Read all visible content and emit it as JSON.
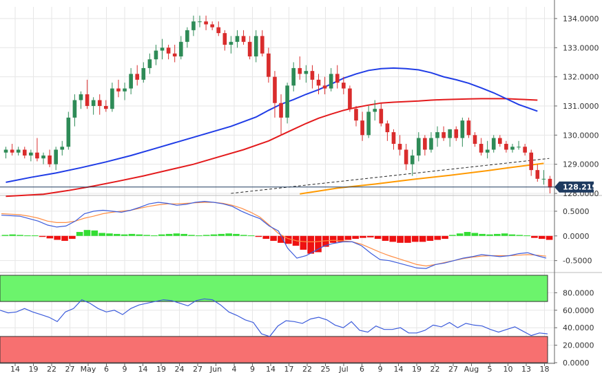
{
  "chart_data": [
    {
      "type": "candlestick",
      "panel": "price",
      "ylim": [
        128.0,
        134.4
      ],
      "y_ticks": [
        "134.0000",
        "133.0000",
        "132.0000",
        "131.0000",
        "130.0000",
        "129.0000",
        "128.0000"
      ],
      "y_tick_values": [
        134,
        133,
        132,
        131,
        130,
        129,
        128
      ],
      "last_price_label": "128.2190",
      "last_price": 128.219,
      "x_tick_labels": [
        "14",
        "19",
        "22",
        "27",
        "May",
        "6",
        "9",
        "14",
        "19",
        "24",
        "27",
        "Jun",
        "4",
        "9",
        "14",
        "17",
        "22",
        "25",
        "Jul",
        "6",
        "9",
        "14",
        "19",
        "22",
        "27",
        "Aug",
        "5",
        "10",
        "13",
        "18"
      ],
      "candles": [
        [
          129.4,
          129.6,
          129.2,
          129.5
        ],
        [
          129.5,
          129.7,
          129.3,
          129.4
        ],
        [
          129.4,
          129.6,
          129.3,
          129.5
        ],
        [
          129.5,
          129.6,
          129.2,
          129.3
        ],
        [
          129.3,
          129.5,
          129.1,
          129.4
        ],
        [
          129.4,
          129.9,
          129.1,
          129.2
        ],
        [
          129.2,
          129.4,
          129.0,
          129.3
        ],
        [
          129.3,
          129.5,
          128.9,
          129.0
        ],
        [
          129.0,
          129.6,
          128.8,
          129.5
        ],
        [
          129.5,
          129.8,
          129.3,
          129.6
        ],
        [
          129.6,
          130.8,
          129.5,
          130.6
        ],
        [
          130.6,
          131.4,
          130.3,
          131.2
        ],
        [
          131.2,
          131.5,
          130.9,
          131.4
        ],
        [
          131.4,
          131.9,
          130.9,
          131.0
        ],
        [
          131.0,
          131.3,
          130.7,
          131.2
        ],
        [
          131.2,
          131.4,
          130.7,
          131.0
        ],
        [
          131.0,
          131.2,
          130.8,
          130.9
        ],
        [
          130.9,
          131.8,
          130.8,
          131.6
        ],
        [
          131.6,
          131.9,
          131.3,
          131.5
        ],
        [
          131.5,
          131.8,
          131.2,
          131.6
        ],
        [
          131.6,
          132.3,
          131.4,
          132.1
        ],
        [
          132.1,
          132.4,
          131.7,
          131.9
        ],
        [
          131.9,
          132.5,
          131.8,
          132.3
        ],
        [
          132.3,
          132.8,
          132.1,
          132.6
        ],
        [
          132.6,
          133.1,
          132.4,
          132.9
        ],
        [
          132.9,
          133.3,
          132.6,
          133.0
        ],
        [
          133.0,
          133.1,
          132.6,
          132.8
        ],
        [
          132.8,
          133.1,
          132.5,
          132.7
        ],
        [
          132.7,
          133.4,
          132.6,
          133.2
        ],
        [
          133.2,
          133.7,
          133.0,
          133.6
        ],
        [
          133.6,
          134.1,
          133.4,
          133.9
        ],
        [
          133.9,
          134.1,
          133.7,
          133.9
        ],
        [
          133.9,
          134.1,
          133.6,
          133.8
        ],
        [
          133.8,
          133.9,
          133.6,
          133.7
        ],
        [
          133.7,
          133.9,
          133.4,
          133.5
        ],
        [
          133.5,
          133.6,
          132.9,
          133.1
        ],
        [
          133.1,
          133.4,
          132.8,
          133.2
        ],
        [
          133.2,
          133.6,
          133.0,
          133.4
        ],
        [
          133.4,
          133.6,
          133.1,
          133.2
        ],
        [
          133.2,
          133.4,
          132.6,
          132.7
        ],
        [
          132.7,
          133.6,
          132.5,
          133.4
        ],
        [
          133.4,
          133.6,
          132.7,
          132.8
        ],
        [
          132.8,
          133.0,
          131.8,
          132.0
        ],
        [
          132.0,
          132.2,
          130.6,
          131.1
        ],
        [
          131.1,
          131.4,
          130.0,
          130.6
        ],
        [
          130.6,
          131.8,
          130.4,
          131.7
        ],
        [
          131.7,
          132.5,
          131.5,
          132.3
        ],
        [
          132.3,
          132.7,
          131.9,
          132.1
        ],
        [
          132.1,
          132.4,
          131.8,
          132.2
        ],
        [
          132.2,
          132.4,
          131.6,
          131.9
        ],
        [
          131.9,
          132.1,
          131.4,
          131.7
        ],
        [
          131.7,
          132.0,
          131.4,
          131.6
        ],
        [
          131.6,
          132.3,
          131.5,
          132.1
        ],
        [
          132.1,
          132.4,
          131.6,
          131.8
        ],
        [
          131.8,
          132.0,
          131.4,
          131.6
        ],
        [
          131.6,
          131.7,
          130.8,
          130.9
        ],
        [
          130.9,
          131.0,
          130.3,
          130.5
        ],
        [
          130.5,
          130.8,
          129.8,
          130.0
        ],
        [
          130.0,
          131.0,
          129.9,
          130.8
        ],
        [
          130.8,
          131.2,
          130.5,
          130.9
        ],
        [
          130.9,
          131.1,
          130.3,
          130.4
        ],
        [
          130.4,
          130.5,
          129.8,
          130.1
        ],
        [
          130.1,
          130.2,
          129.5,
          129.7
        ],
        [
          129.7,
          130.0,
          129.3,
          129.5
        ],
        [
          129.5,
          129.7,
          128.8,
          129.0
        ],
        [
          129.0,
          129.5,
          128.6,
          129.3
        ],
        [
          129.3,
          130.1,
          129.1,
          129.9
        ],
        [
          129.9,
          130.0,
          129.3,
          129.5
        ],
        [
          129.5,
          130.1,
          129.4,
          129.9
        ],
        [
          129.9,
          130.3,
          129.6,
          130.1
        ],
        [
          130.1,
          130.3,
          129.8,
          129.9
        ],
        [
          129.9,
          130.2,
          129.6,
          130.2
        ],
        [
          130.2,
          130.3,
          129.8,
          129.9
        ],
        [
          129.9,
          130.6,
          129.6,
          130.5
        ],
        [
          130.5,
          130.6,
          129.9,
          130.0
        ],
        [
          130.0,
          130.1,
          129.6,
          129.7
        ],
        [
          129.7,
          129.9,
          129.3,
          129.4
        ],
        [
          129.4,
          129.8,
          129.2,
          129.5
        ],
        [
          129.5,
          130.0,
          129.4,
          129.9
        ],
        [
          129.9,
          130.0,
          129.6,
          129.7
        ],
        [
          129.7,
          129.8,
          129.4,
          129.5
        ],
        [
          129.5,
          129.7,
          129.4,
          129.6
        ],
        [
          129.6,
          129.8,
          129.5,
          129.6
        ],
        [
          129.6,
          129.7,
          129.3,
          129.4
        ],
        [
          129.4,
          129.5,
          128.6,
          128.8
        ],
        [
          128.8,
          129.0,
          128.4,
          128.5
        ],
        [
          128.5,
          128.8,
          128.3,
          128.5
        ],
        [
          128.5,
          128.6,
          128.0,
          128.2
        ]
      ],
      "sma_blue": [
        [
          0,
          128.38
        ],
        [
          4,
          128.55
        ],
        [
          8,
          128.7
        ],
        [
          12,
          128.88
        ],
        [
          16,
          129.08
        ],
        [
          20,
          129.3
        ],
        [
          24,
          129.55
        ],
        [
          28,
          129.8
        ],
        [
          32,
          130.05
        ],
        [
          36,
          130.3
        ],
        [
          40,
          130.62
        ],
        [
          42,
          130.85
        ],
        [
          44,
          131.06
        ],
        [
          46,
          131.22
        ],
        [
          48,
          131.4
        ],
        [
          50,
          131.56
        ],
        [
          52,
          131.75
        ],
        [
          54,
          131.95
        ],
        [
          56,
          132.1
        ],
        [
          58,
          132.22
        ],
        [
          60,
          132.28
        ],
        [
          62,
          132.3
        ],
        [
          64,
          132.28
        ],
        [
          66,
          132.24
        ],
        [
          68,
          132.14
        ],
        [
          70,
          132.0
        ],
        [
          72,
          131.9
        ],
        [
          74,
          131.78
        ],
        [
          76,
          131.62
        ],
        [
          78,
          131.45
        ],
        [
          80,
          131.25
        ],
        [
          82,
          131.05
        ],
        [
          85,
          130.82
        ]
      ],
      "sma_red": [
        [
          0,
          127.9
        ],
        [
          6,
          127.97
        ],
        [
          10,
          128.1
        ],
        [
          14,
          128.25
        ],
        [
          18,
          128.42
        ],
        [
          22,
          128.6
        ],
        [
          26,
          128.8
        ],
        [
          30,
          129.0
        ],
        [
          34,
          129.25
        ],
        [
          38,
          129.5
        ],
        [
          42,
          129.8
        ],
        [
          44,
          130.0
        ],
        [
          46,
          130.2
        ],
        [
          48,
          130.4
        ],
        [
          50,
          130.58
        ],
        [
          52,
          130.72
        ],
        [
          54,
          130.85
        ],
        [
          56,
          130.95
        ],
        [
          58,
          131.03
        ],
        [
          60,
          131.1
        ],
        [
          62,
          131.13
        ],
        [
          64,
          131.15
        ],
        [
          66,
          131.17
        ],
        [
          68,
          131.2
        ],
        [
          70,
          131.22
        ],
        [
          72,
          131.23
        ],
        [
          74,
          131.24
        ],
        [
          76,
          131.25
        ],
        [
          78,
          131.25
        ],
        [
          80,
          131.25
        ],
        [
          82,
          131.23
        ],
        [
          85,
          131.2
        ]
      ],
      "sma_orange": [
        [
          47,
          127.98
        ],
        [
          50,
          128.08
        ],
        [
          53,
          128.18
        ],
        [
          56,
          128.25
        ],
        [
          59,
          128.32
        ],
        [
          62,
          128.4
        ],
        [
          65,
          128.48
        ],
        [
          68,
          128.55
        ],
        [
          71,
          128.62
        ],
        [
          74,
          128.7
        ],
        [
          77,
          128.78
        ],
        [
          80,
          128.87
        ],
        [
          83,
          128.95
        ],
        [
          86,
          129.03
        ]
      ],
      "trendline_dashed": [
        [
          36,
          128.0
        ],
        [
          86,
          129.2
        ]
      ]
    },
    {
      "type": "macd",
      "panel": "macd",
      "ylim": [
        -0.7,
        0.75
      ],
      "y_ticks": [
        "0.5000",
        "0.0000",
        "-0.5000"
      ],
      "y_tick_values": [
        0.5,
        0.0,
        -0.5
      ],
      "macd_line": [
        0.42,
        0.41,
        0.4,
        0.35,
        0.3,
        0.22,
        0.18,
        0.2,
        0.3,
        0.45,
        0.5,
        0.52,
        0.5,
        0.48,
        0.52,
        0.58,
        0.65,
        0.68,
        0.66,
        0.62,
        0.64,
        0.68,
        0.7,
        0.68,
        0.65,
        0.6,
        0.5,
        0.42,
        0.35,
        0.2,
        0.1,
        -0.25,
        -0.45,
        -0.4,
        -0.3,
        -0.2,
        -0.15,
        -0.12,
        -0.12,
        -0.2,
        -0.35,
        -0.48,
        -0.5,
        -0.55,
        -0.6,
        -0.65,
        -0.66,
        -0.58,
        -0.55,
        -0.5,
        -0.45,
        -0.42,
        -0.38,
        -0.4,
        -0.42,
        -0.4,
        -0.36,
        -0.34,
        -0.4,
        -0.45
      ],
      "signal_line": [
        0.45,
        0.44,
        0.43,
        0.4,
        0.36,
        0.3,
        0.27,
        0.27,
        0.3,
        0.36,
        0.4,
        0.45,
        0.48,
        0.5,
        0.52,
        0.56,
        0.6,
        0.63,
        0.65,
        0.65,
        0.66,
        0.67,
        0.68,
        0.68,
        0.66,
        0.62,
        0.56,
        0.48,
        0.38,
        0.22,
        0.05,
        -0.05,
        -0.1,
        -0.12,
        -0.12,
        -0.1,
        -0.09,
        -0.1,
        -0.12,
        -0.17,
        -0.25,
        -0.33,
        -0.4,
        -0.46,
        -0.52,
        -0.58,
        -0.61,
        -0.58,
        -0.54,
        -0.5,
        -0.46,
        -0.43,
        -0.41,
        -0.4,
        -0.4,
        -0.4,
        -0.39,
        -0.38,
        -0.39,
        -0.41
      ],
      "histogram": [
        0.02,
        0.03,
        0.02,
        0.01,
        0.01,
        -0.02,
        -0.05,
        -0.08,
        -0.1,
        -0.06,
        0.08,
        0.12,
        0.11,
        0.06,
        0.05,
        0.04,
        0.03,
        0.04,
        0.03,
        0.02,
        0.01,
        0.03,
        0.04,
        0.05,
        0.04,
        0.02,
        0.01,
        0.02,
        0.03,
        0.04,
        0.05,
        0.04,
        0.02,
        0.01,
        -0.02,
        -0.06,
        -0.1,
        -0.14,
        -0.16,
        -0.2,
        -0.28,
        -0.36,
        -0.33,
        -0.22,
        -0.14,
        -0.12,
        -0.08,
        -0.06,
        -0.04,
        -0.03,
        -0.06,
        -0.1,
        -0.12,
        -0.14,
        -0.14,
        -0.12,
        -0.12,
        -0.1,
        -0.08,
        -0.06,
        0.02,
        0.05,
        0.08,
        0.06,
        0.04,
        0.03,
        0.04,
        0.05,
        0.03,
        0.02,
        0.01,
        -0.04,
        -0.06,
        -0.08
      ]
    },
    {
      "type": "rsi",
      "panel": "rsi",
      "ylim": [
        0,
        100
      ],
      "y_ticks": [
        "80.0000",
        "60.0000",
        "40.0000",
        "20.0000",
        "0.0000"
      ],
      "y_tick_values": [
        80,
        60,
        40,
        20,
        0
      ],
      "overbought": 70,
      "oversold": 30,
      "rsi_line": [
        60,
        57,
        58,
        62,
        58,
        55,
        52,
        47,
        58,
        62,
        72,
        68,
        62,
        58,
        60,
        55,
        62,
        66,
        68,
        70,
        72,
        71,
        68,
        65,
        71,
        73,
        72,
        66,
        58,
        54,
        49,
        46,
        33,
        30,
        42,
        48,
        47,
        45,
        50,
        52,
        49,
        43,
        40,
        47,
        37,
        35,
        42,
        38,
        38,
        40,
        34,
        34,
        37,
        43,
        41,
        46,
        40,
        45,
        43,
        42,
        38,
        35,
        38,
        41,
        36,
        31,
        34,
        33
      ]
    }
  ],
  "colors": {
    "up_candle": "#2e8b57",
    "down_candle": "#d92c2c",
    "sma_blue": "#1f3ce6",
    "sma_red": "#e31a1c",
    "sma_orange": "#ff9900",
    "macd_line": "#3b5bdb",
    "signal_line": "#ff8c42",
    "hist_pos": "#33dd33",
    "hist_neg": "#ee1111",
    "rsi_line": "#3b5bdb",
    "overbought_fill": "#6cf46c",
    "oversold_fill": "#f77070",
    "price_line": "#1e3a5f",
    "label_bg": "#1e3a5f"
  }
}
